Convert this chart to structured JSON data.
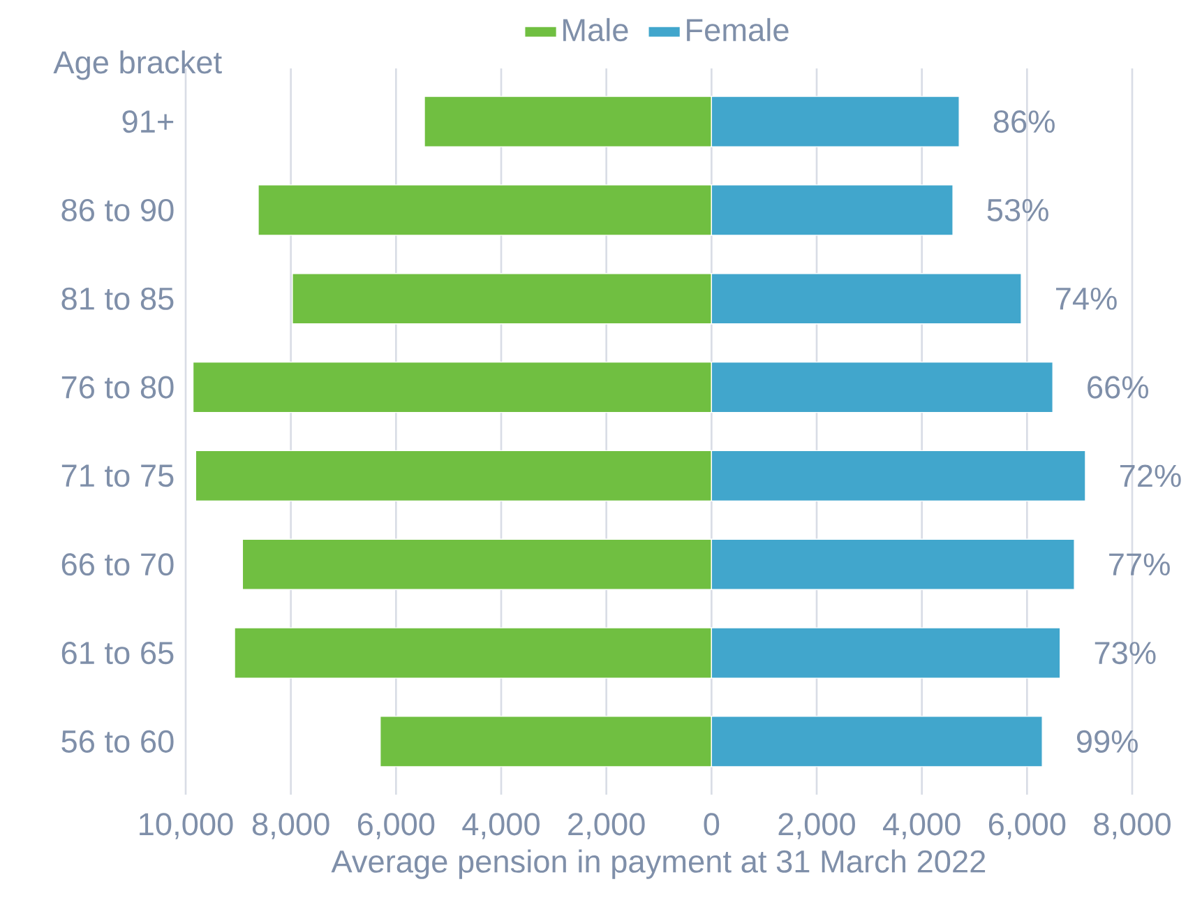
{
  "chart_data": {
    "type": "bar",
    "orientation": "horizontal",
    "ylabel": "Age bracket",
    "xlabel": "Average pension in payment at 31 March 2022",
    "categories": [
      "91+",
      "86 to 90",
      "81 to 85",
      "76 to 80",
      "71 to 75",
      "66 to 70",
      "61 to 65",
      "56 to 60"
    ],
    "series": [
      {
        "name": "Male",
        "color": "#70bf41",
        "values": [
          -5460,
          -8620,
          -7970,
          -9860,
          -9810,
          -8920,
          -9070,
          -6300
        ]
      },
      {
        "name": "Female",
        "color": "#41a6cc",
        "values": [
          4710,
          4590,
          5890,
          6490,
          7110,
          6900,
          6630,
          6290
        ]
      }
    ],
    "stacked": true,
    "annotations": [
      {
        "text": "86%",
        "x": 4710,
        "y": "91+"
      },
      {
        "text": "53%",
        "x": 4590,
        "y": "86 to 90"
      },
      {
        "text": "74%",
        "x": 5890,
        "y": "81 to 85"
      },
      {
        "text": "66%",
        "x": 6490,
        "y": "76 to 80"
      },
      {
        "text": "72%",
        "x": 7110,
        "y": "71 to 75"
      },
      {
        "text": "77%",
        "x": 6900,
        "y": "66 to 70"
      },
      {
        "text": "73%",
        "x": 6630,
        "y": "61 to 65"
      },
      {
        "text": "99%",
        "x": 6290,
        "y": "56 to 60"
      }
    ],
    "xlim": [
      -10000,
      8000
    ],
    "xticks": [
      {
        "value": -10000,
        "label": "10,000"
      },
      {
        "value": -8000,
        "label": "8,000"
      },
      {
        "value": -6000,
        "label": "6,000"
      },
      {
        "value": -4000,
        "label": "4,000"
      },
      {
        "value": -2000,
        "label": "2,000"
      },
      0,
      {
        "value": 2000,
        "label": "2,000"
      },
      {
        "value": 4000,
        "label": "4,000"
      },
      {
        "value": 6000,
        "label": "6,000"
      },
      {
        "value": 8000,
        "label": "8,000"
      }
    ],
    "grid": "x",
    "legend": "top"
  }
}
